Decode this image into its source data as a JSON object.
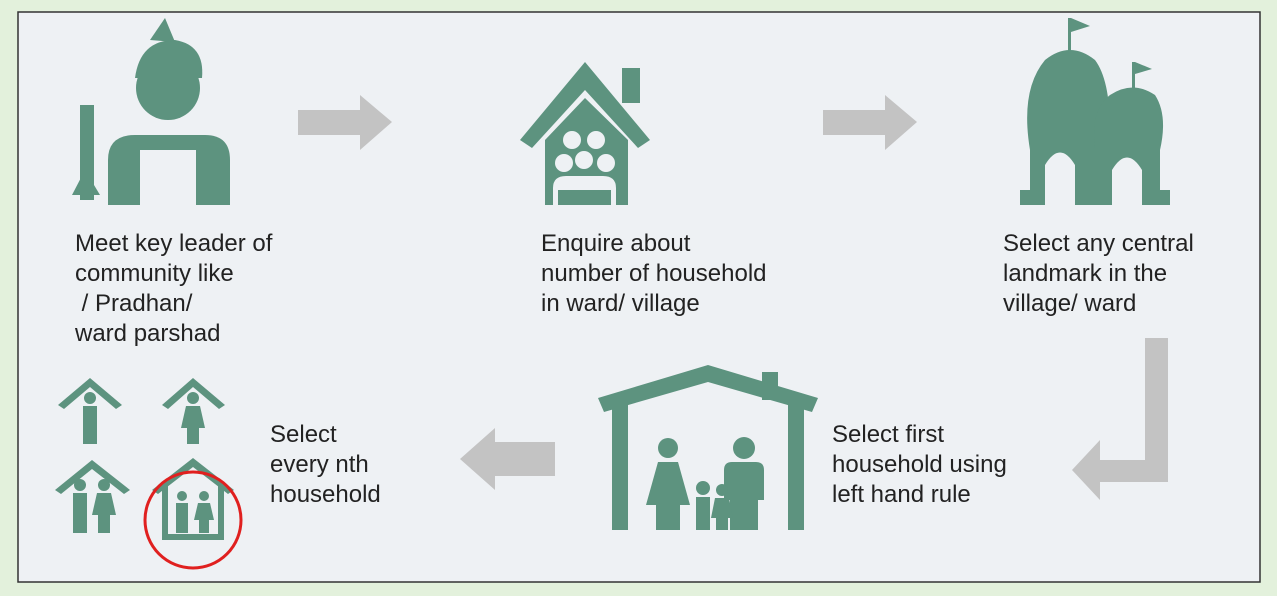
{
  "steps": [
    {
      "lines": [
        "Meet key leader of",
        "community like",
        " / Pradhan/",
        "ward parshad"
      ]
    },
    {
      "lines": [
        "Enquire about",
        "number of household",
        "in ward/ village"
      ]
    },
    {
      "lines": [
        "Select any central",
        "landmark in the",
        "village/ ward"
      ]
    },
    {
      "lines": [
        "Select first",
        "household using",
        "left hand rule"
      ]
    },
    {
      "lines": [
        "Select",
        "every nth",
        "household"
      ]
    }
  ]
}
